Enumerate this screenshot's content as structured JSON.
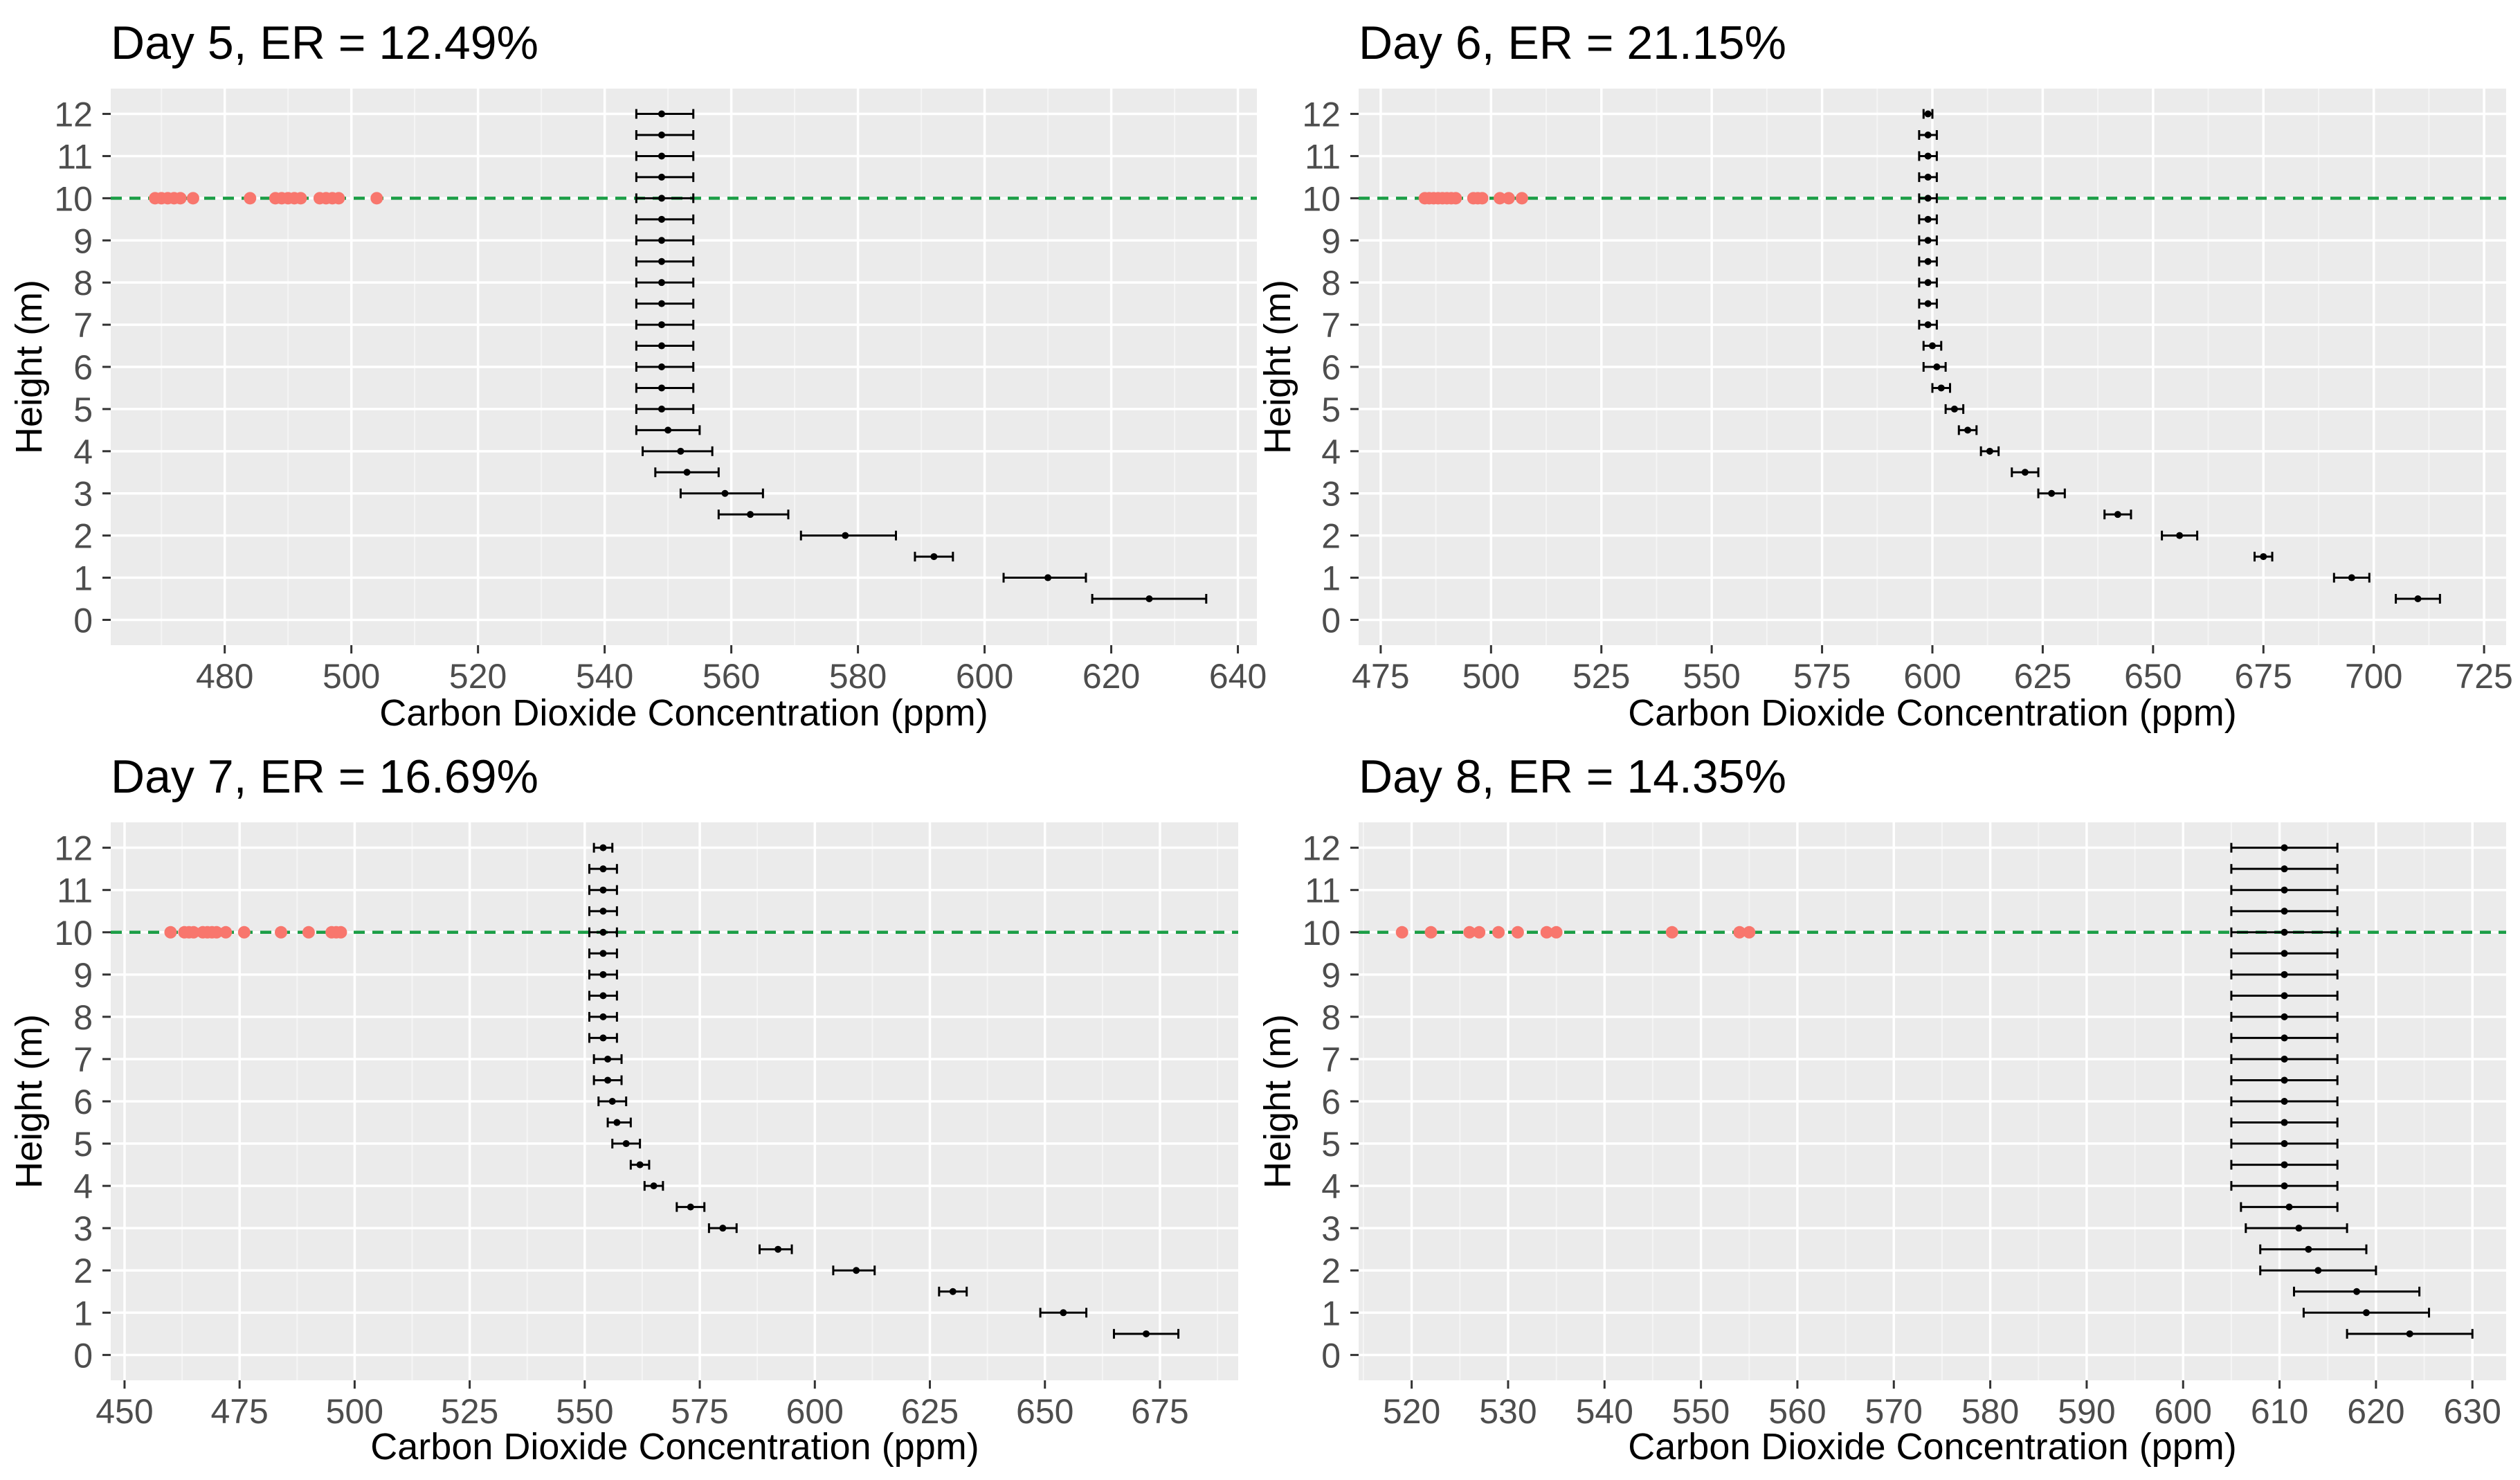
{
  "figure": {
    "colors": {
      "panel_bg": "#EBEBEB",
      "grid_major": "#FFFFFF",
      "grid_minor": "#F5F5F5",
      "point_color": "#000000",
      "errorbar_color": "#000000",
      "ground_points": "#F8766D",
      "reference_line": "#1B9E46"
    },
    "xlabel": "Carbon Dioxide Concentration (ppm)",
    "ylabel": "Height (m)"
  },
  "chart_data": [
    {
      "type": "scatter",
      "title": "Day 5, ER = 12.49%",
      "xlabel": "Carbon Dioxide Concentration (ppm)",
      "ylabel": "Height (m)",
      "xlim": [
        462,
        643
      ],
      "ylim": [
        -0.6,
        12.6
      ],
      "xticks": [
        480,
        500,
        520,
        540,
        560,
        580,
        600,
        620,
        640
      ],
      "yticks": [
        0,
        1,
        2,
        3,
        4,
        5,
        6,
        7,
        8,
        9,
        10,
        11,
        12
      ],
      "reference_line_y": 10,
      "ground_observations_y": 10,
      "ground_observations": [
        469,
        470,
        471,
        472,
        473,
        475,
        484,
        488,
        489,
        490,
        491,
        492,
        495,
        496,
        497,
        498,
        504
      ],
      "profile": {
        "height": [
          0,
          1,
          2,
          3,
          4,
          5,
          6,
          7,
          8,
          9,
          10,
          11,
          12,
          12,
          12,
          12,
          12,
          12,
          12,
          12,
          12,
          12,
          12,
          12,
          12,
          12,
          12,
          12,
          12,
          12,
          12
        ],
        "mean": [],
        "lower": [],
        "upper": []
      },
      "series": [
        {
          "name": "profile",
          "height": [
            12,
            11.5,
            11,
            10.5,
            10,
            9.5,
            9,
            8.5,
            8,
            7.5,
            7,
            6.5,
            6,
            5.5,
            5,
            4.5,
            4,
            3.5,
            3,
            2.5,
            2,
            1.5,
            1,
            0.5
          ],
          "mean": [
            549,
            549,
            549,
            549,
            549,
            549,
            549,
            549,
            549,
            549,
            549,
            549,
            549,
            549,
            549,
            550,
            552,
            553,
            559,
            563,
            578,
            592,
            610,
            626
          ],
          "lower": [
            545,
            545,
            545,
            545,
            545,
            545,
            545,
            545,
            545,
            545,
            545,
            545,
            545,
            545,
            545,
            545,
            546,
            548,
            552,
            558,
            571,
            589,
            603,
            617
          ],
          "upper": [
            554,
            554,
            554,
            554,
            554,
            554,
            554,
            554,
            554,
            554,
            554,
            554,
            554,
            554,
            554,
            555,
            557,
            558,
            565,
            569,
            586,
            595,
            616,
            635
          ]
        }
      ]
    },
    {
      "type": "scatter",
      "title": "Day 6, ER = 21.15%",
      "xlabel": "Carbon Dioxide Concentration (ppm)",
      "ylabel": "Height (m)",
      "xlim": [
        470,
        730
      ],
      "ylim": [
        -0.6,
        12.6
      ],
      "xticks": [
        475,
        500,
        525,
        550,
        575,
        600,
        625,
        650,
        675,
        700,
        725
      ],
      "yticks": [
        0,
        1,
        2,
        3,
        4,
        5,
        6,
        7,
        8,
        9,
        10,
        11,
        12
      ],
      "reference_line_y": 10,
      "ground_observations_y": 10,
      "ground_observations": [
        485,
        486,
        487,
        488,
        489,
        490,
        491,
        492,
        496,
        497,
        498,
        502,
        504,
        507
      ],
      "series": [
        {
          "name": "profile",
          "height": [
            12,
            11.5,
            11,
            10.5,
            10,
            9.5,
            9,
            8.5,
            8,
            7.5,
            7,
            6.5,
            6,
            5.5,
            5,
            4.5,
            4,
            3.5,
            3,
            2.5,
            2,
            1.5,
            1,
            0.5
          ],
          "mean": [
            599,
            599,
            599,
            599,
            599,
            599,
            599,
            599,
            599,
            599,
            599,
            600,
            601,
            602,
            605,
            608,
            613,
            621,
            627,
            642,
            656,
            675,
            695,
            710
          ],
          "lower": [
            598,
            597,
            597,
            597,
            597,
            597,
            597,
            597,
            597,
            597,
            597,
            598,
            598,
            600,
            603,
            606,
            611,
            618,
            624,
            639,
            652,
            673,
            691,
            705
          ],
          "upper": [
            600,
            601,
            601,
            601,
            601,
            601,
            601,
            601,
            601,
            601,
            601,
            602,
            603,
            604,
            607,
            610,
            615,
            624,
            630,
            645,
            660,
            677,
            699,
            715
          ]
        }
      ]
    },
    {
      "type": "scatter",
      "title": "Day 7, ER = 16.69%",
      "xlabel": "Carbon Dioxide Concentration (ppm)",
      "ylabel": "Height (m)",
      "xlim": [
        447,
        692
      ],
      "ylim": [
        -0.6,
        12.6
      ],
      "xticks": [
        450,
        475,
        500,
        525,
        550,
        575,
        600,
        625,
        650,
        675
      ],
      "yticks": [
        0,
        1,
        2,
        3,
        4,
        5,
        6,
        7,
        8,
        9,
        10,
        11,
        12
      ],
      "reference_line_y": 10,
      "ground_observations_y": 10,
      "ground_observations": [
        460,
        463,
        464,
        465,
        467,
        468,
        469,
        470,
        472,
        476,
        484,
        490,
        495,
        496,
        497
      ],
      "series": [
        {
          "name": "profile",
          "height": [
            12,
            11.5,
            11,
            10.5,
            10,
            9.5,
            9,
            8.5,
            8,
            7.5,
            7,
            6.5,
            6,
            5.5,
            5,
            4.5,
            4,
            3.5,
            3,
            2.5,
            2,
            1.5,
            1,
            0.5
          ],
          "mean": [
            554,
            554,
            554,
            554,
            554,
            554,
            554,
            554,
            554,
            554,
            555,
            555,
            556,
            557,
            559,
            562,
            565,
            573,
            580,
            592,
            609,
            630,
            654,
            672
          ],
          "lower": [
            552,
            551,
            551,
            551,
            551,
            551,
            551,
            551,
            551,
            551,
            552,
            552,
            553,
            555,
            556,
            560,
            563,
            570,
            577,
            588,
            604,
            627,
            649,
            665
          ],
          "upper": [
            556,
            557,
            557,
            557,
            557,
            557,
            557,
            557,
            557,
            557,
            558,
            558,
            559,
            560,
            562,
            564,
            567,
            576,
            583,
            595,
            613,
            633,
            659,
            679
          ]
        }
      ]
    },
    {
      "type": "scatter",
      "title": "Day 8, ER = 14.35%",
      "xlabel": "Carbon Dioxide Concentration (ppm)",
      "ylabel": "Height (m)",
      "xlim": [
        514.5,
        633.5
      ],
      "ylim": [
        -0.6,
        12.6
      ],
      "xticks": [
        520,
        530,
        540,
        550,
        560,
        570,
        580,
        590,
        600,
        610,
        620,
        630
      ],
      "yticks": [
        0,
        1,
        2,
        3,
        4,
        5,
        6,
        7,
        8,
        9,
        10,
        11,
        12
      ],
      "reference_line_y": 10,
      "ground_observations_y": 10,
      "ground_observations": [
        519,
        522,
        526,
        527,
        529,
        531,
        534,
        535,
        547,
        554,
        555
      ],
      "series": [
        {
          "name": "profile",
          "height": [
            12,
            11.5,
            11,
            10.5,
            10,
            9.5,
            9,
            8.5,
            8,
            7.5,
            7,
            6.5,
            6,
            5.5,
            5,
            4.5,
            4,
            3.5,
            3,
            2.5,
            2,
            1.5,
            1,
            0.5
          ],
          "mean": [
            610.5,
            610.5,
            610.5,
            610.5,
            610.5,
            610.5,
            610.5,
            610.5,
            610.5,
            610.5,
            610.5,
            610.5,
            610.5,
            610.5,
            610.5,
            610.5,
            610.5,
            611,
            612,
            613,
            614,
            618,
            619,
            623.5
          ],
          "lower": [
            605,
            605,
            605,
            605,
            605,
            605,
            605,
            605,
            605,
            605,
            605,
            605,
            605,
            605,
            605,
            605,
            605,
            606,
            606.5,
            608,
            608,
            611.5,
            612.5,
            617
          ],
          "upper": [
            616,
            616,
            616,
            616,
            616,
            616,
            616,
            616,
            616,
            616,
            616,
            616,
            616,
            616,
            616,
            616,
            616,
            616,
            617,
            619,
            620,
            624.5,
            625.5,
            630
          ]
        }
      ]
    }
  ]
}
